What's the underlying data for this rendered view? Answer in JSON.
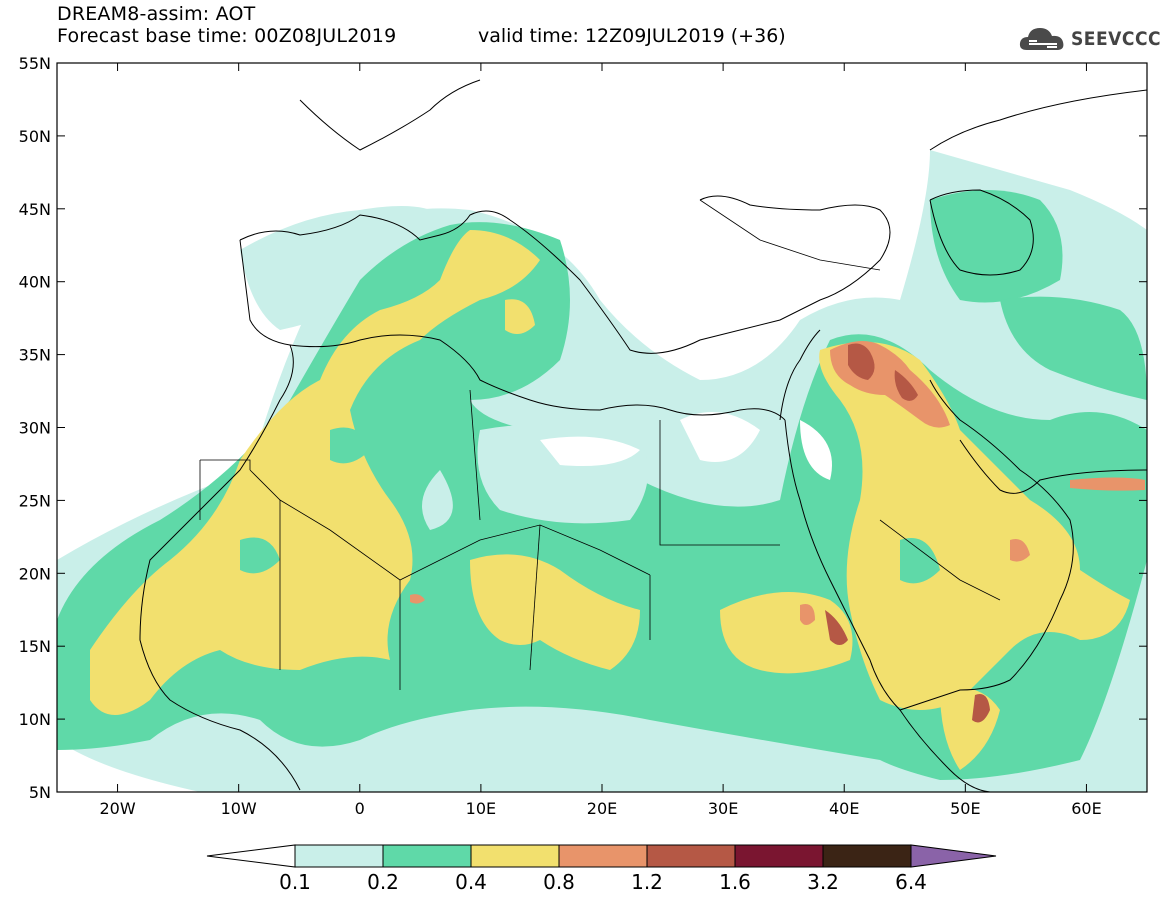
{
  "title": {
    "line1": "DREAM8-assim: AOT",
    "line2_left": "Forecast base time: 00Z08JUL2019",
    "line2_right": "valid time: 12Z09JUL2019 (+36)"
  },
  "logo": {
    "text": "SEEVCCC",
    "icon": "cloud-icon"
  },
  "map": {
    "lon_range": [
      -25,
      65
    ],
    "lat_range": [
      5,
      55
    ],
    "lat_ticks": [
      "55N",
      "50N",
      "45N",
      "40N",
      "35N",
      "30N",
      "25N",
      "20N",
      "15N",
      "10N",
      "5N"
    ],
    "lon_ticks": [
      "20W",
      "10W",
      "0",
      "10E",
      "20E",
      "30E",
      "40E",
      "50E",
      "60E"
    ]
  },
  "colorbar": {
    "labels": [
      "0.1",
      "0.2",
      "0.4",
      "0.8",
      "1.2",
      "1.6",
      "3.2",
      "6.4"
    ],
    "colors": [
      "#c9efe9",
      "#5fd9a8",
      "#f2e06e",
      "#e8946a",
      "#b55845",
      "#7a1530",
      "#3b2415",
      "#8a63a8"
    ],
    "under_color": "#ffffff"
  }
}
